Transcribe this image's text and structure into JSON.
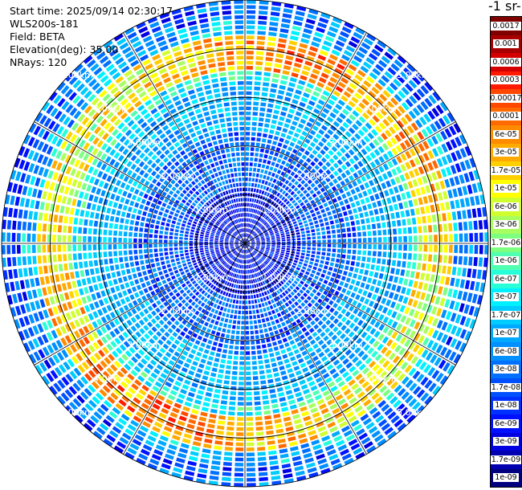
{
  "info": {
    "start_time": "Start time: 2025/09/14 02:30:17",
    "instrument": "WLS200s-181",
    "field": "Field: BETA",
    "elevation": "Elevation(deg): 35.00",
    "nrays": "NRays: 120"
  },
  "units_label": "-1 sr-",
  "chart_data": {
    "type": "heatmap",
    "projection": "polar-ppi",
    "field": "BETA",
    "nrays": 120,
    "max_range_km": 5.0,
    "range_rings_km": [
      1,
      2,
      3,
      4,
      5
    ],
    "range_labels": [
      "1.00km",
      "2.00km",
      "3.00km",
      "4.00km",
      "5.00km"
    ],
    "aerosol_band_km": [
      3.6,
      4.3
    ],
    "colorbar": {
      "ticks": [
        "0.0017",
        "0.001",
        "0.0006",
        "0.0003",
        "0.00017",
        "0.0001",
        "6e-05",
        "3e-05",
        "1.7e-05",
        "1e-05",
        "6e-06",
        "3e-06",
        "1.7e-06",
        "1e-06",
        "6e-07",
        "3e-07",
        "1.7e-07",
        "1e-07",
        "6e-08",
        "3e-08",
        "1.7e-08",
        "1e-08",
        "6e-09",
        "3e-09",
        "1.7e-09",
        "1e-09"
      ],
      "colors": [
        "#800000",
        "#a80000",
        "#d40000",
        "#ff1a00",
        "#ff4800",
        "#ff6a00",
        "#ff8c00",
        "#ffaa00",
        "#ffd000",
        "#ffff00",
        "#d0ff30",
        "#a8ff60",
        "#7dff80",
        "#50ffb0",
        "#28ffd8",
        "#00f0ff",
        "#00ccff",
        "#00a8ff",
        "#0090ff",
        "#0070ff",
        "#0050ff",
        "#0030ff",
        "#0010ff",
        "#0000e0",
        "#0000b0",
        "#000080"
      ]
    }
  }
}
